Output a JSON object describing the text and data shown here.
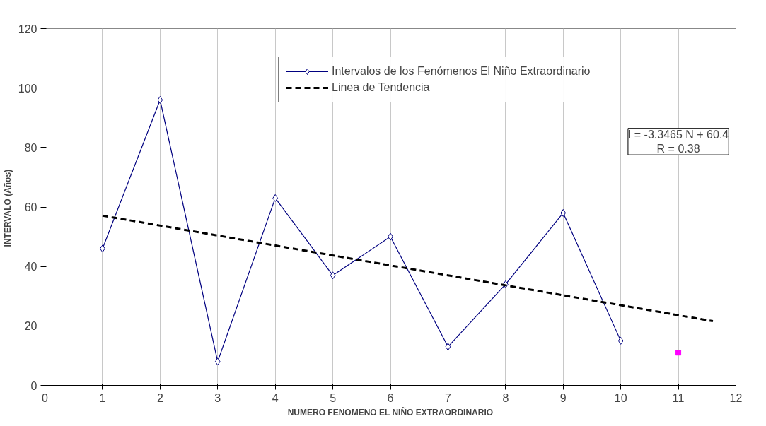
{
  "chart_data": {
    "type": "line",
    "xlabel": "NUMERO FENOMENO EL NIÑO EXTRAORDINARIO",
    "ylabel": "INTERVALO  (Años)",
    "x": [
      1,
      2,
      3,
      4,
      5,
      6,
      7,
      8,
      9,
      10
    ],
    "series": [
      {
        "name": "Intervalos de los Fenómenos El Niño Extraordinario",
        "color": "#000080",
        "values": [
          46,
          96,
          8,
          63,
          37,
          50,
          13,
          34,
          58,
          15
        ],
        "marker": "diamond",
        "line_style": "solid"
      },
      {
        "name": "Linea de Tendencia",
        "type": "line",
        "color": "#000000",
        "x": [
          1,
          11.6
        ],
        "values": [
          57.1,
          21.6
        ],
        "marker": "none",
        "line_style": "dashed"
      },
      {
        "type": "scatter",
        "color": "#ff00ff",
        "x": [
          11
        ],
        "values": [
          11
        ],
        "marker": "square"
      }
    ],
    "xlim": [
      0,
      12
    ],
    "xticks": [
      0,
      1,
      2,
      3,
      4,
      5,
      6,
      7,
      8,
      9,
      10,
      11,
      12
    ],
    "ylim": [
      0,
      120
    ],
    "yticks": [
      0,
      20,
      40,
      60,
      80,
      100,
      120
    ],
    "grid": "x",
    "legend": "top right",
    "annotations": [
      "I = -3.3465 N + 60.4\nR = 0.38"
    ]
  }
}
